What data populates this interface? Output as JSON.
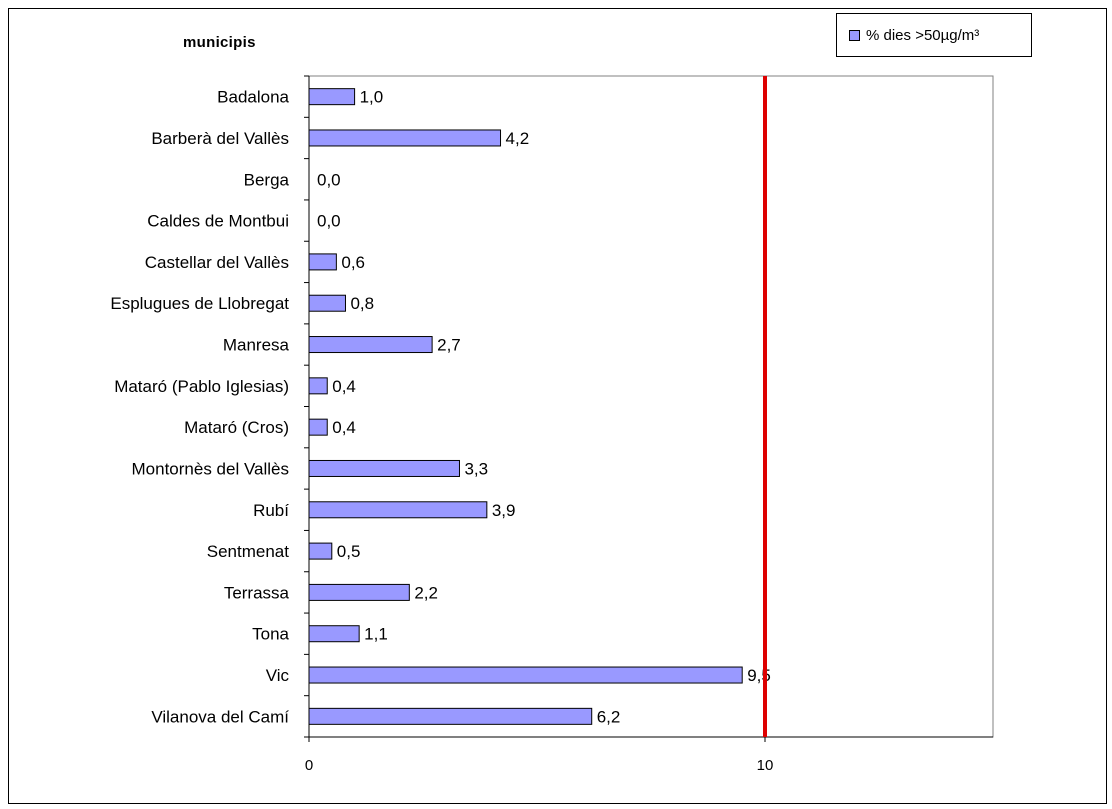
{
  "chart_data": {
    "type": "bar",
    "orientation": "horizontal",
    "title": "",
    "ylabel": "municipis",
    "xlabel": "",
    "categories": [
      "Badalona",
      "Barberà del Vallès",
      "Berga",
      "Caldes de Montbui",
      "Castellar del Vallès",
      "Esplugues de Llobregat",
      "Manresa",
      "Mataró (Pablo Iglesias)",
      "Mataró (Cros)",
      "Montornès del Vallès",
      "Rubí",
      "Sentmenat",
      "Terrassa",
      "Tona",
      "Vic",
      "Vilanova del Camí"
    ],
    "series": [
      {
        "name": "% dies >50µg/m³",
        "values": [
          1.0,
          4.2,
          0.0,
          0.0,
          0.6,
          0.8,
          2.7,
          0.4,
          0.4,
          3.3,
          3.9,
          0.5,
          2.2,
          1.1,
          9.5,
          6.2
        ],
        "labels": [
          "1,0",
          "4,2",
          "0,0",
          "0,0",
          "0,6",
          "0,8",
          "2,7",
          "0,4",
          "0,4",
          "3,3",
          "3,9",
          "0,5",
          "2,2",
          "1,1",
          "9,5",
          "6,2"
        ],
        "color": "#9999ff"
      }
    ],
    "xlim": [
      0,
      15
    ],
    "xticks": [
      0,
      10
    ],
    "xtick_labels": [
      "0",
      "10"
    ],
    "reference_line": {
      "value": 10,
      "color": "#dd0000"
    },
    "grid": false,
    "legend": "top-right"
  },
  "legend": {
    "label": "% dies >50µg/m³"
  },
  "y_title": "municipis"
}
